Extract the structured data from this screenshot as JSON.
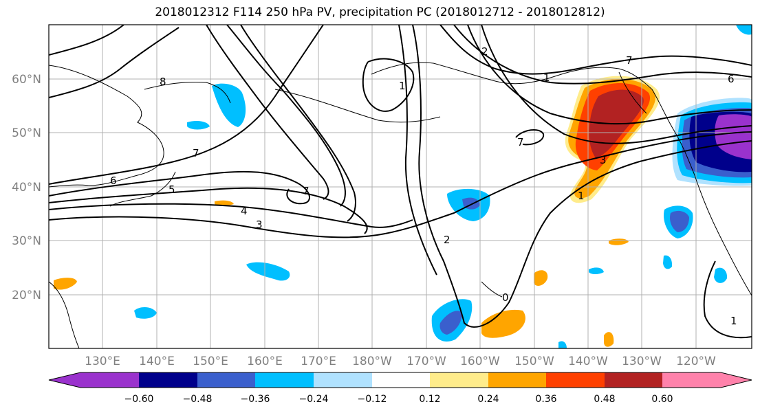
{
  "title": "2018012312 F114 250 hPa PV, precipitation PC (2018012712 - 2018012812)",
  "lat_labels": [
    "60°N",
    "50°N",
    "40°N",
    "30°N",
    "20°N"
  ],
  "lon_labels": [
    "130°E",
    "140°E",
    "150°E",
    "160°E",
    "170°E",
    "180°W",
    "170°W",
    "160°W",
    "150°W",
    "140°W",
    "130°W",
    "120°W"
  ],
  "contour_labels": [
    "8",
    "7",
    "6",
    "5",
    "4",
    "3",
    "2",
    "1",
    "7",
    "6",
    "7",
    "1",
    "3",
    "1",
    "2",
    "0",
    "1",
    "7"
  ],
  "colorbar": {
    "ticks": [
      "−0.60",
      "−0.48",
      "−0.36",
      "−0.24",
      "−0.12",
      "0.12",
      "0.24",
      "0.36",
      "0.48",
      "0.60"
    ],
    "colors": [
      "#9a32cd",
      "#00008b",
      "#3a5fcd",
      "#00bfff",
      "#b0e2ff",
      "#ffffff",
      "#ffec8b",
      "#ffa500",
      "#ff4000",
      "#b22222",
      "#ff82ab"
    ]
  }
}
